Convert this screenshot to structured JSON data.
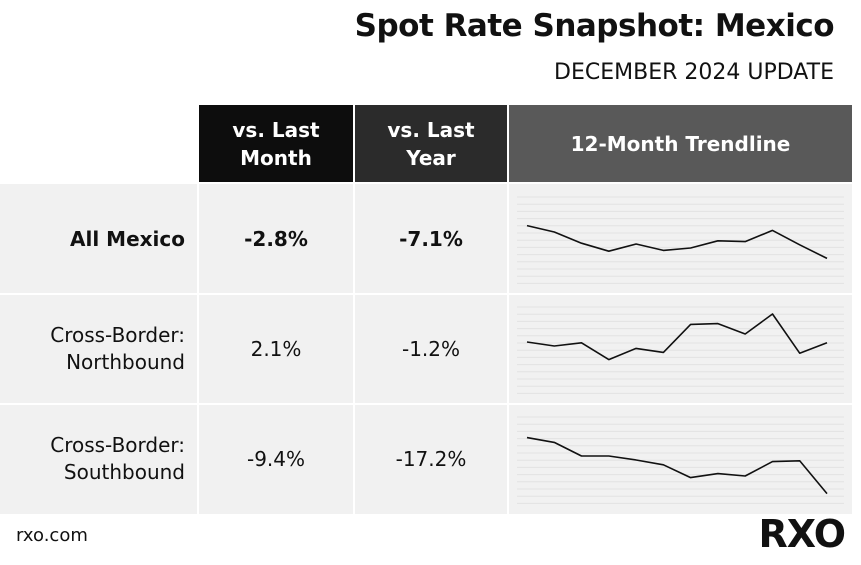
{
  "header": {
    "title": "Spot Rate Snapshot: Mexico",
    "subtitle": "DECEMBER 2024 UPDATE"
  },
  "columns": {
    "vs_last_month": "vs. Last\nMonth",
    "vs_last_year": "vs. Last\nYear",
    "trendline": "12-Month Trendline"
  },
  "rows": [
    {
      "label": "All Mexico",
      "vs_last_month": "-2.8%",
      "vs_last_year": "-7.1%",
      "bold": true
    },
    {
      "label": "Cross-Border:\nNorthbound",
      "vs_last_month": "2.1%",
      "vs_last_year": "-1.2%",
      "bold": false
    },
    {
      "label": "Cross-Border:\nSouthbound",
      "vs_last_month": "-9.4%",
      "vs_last_year": "-17.2%",
      "bold": false
    }
  ],
  "chart_data": {
    "type": "line",
    "x": [
      1,
      2,
      3,
      4,
      5,
      6,
      7,
      8,
      9,
      10,
      11,
      12
    ],
    "ylim": [
      0,
      1
    ],
    "grid": true,
    "series": [
      {
        "values": [
          0.68,
          0.6,
          0.46,
          0.36,
          0.45,
          0.37,
          0.4,
          0.49,
          0.48,
          0.62,
          0.44,
          0.27
        ]
      },
      {
        "values": [
          0.6,
          0.55,
          0.59,
          0.38,
          0.52,
          0.47,
          0.82,
          0.83,
          0.7,
          0.95,
          0.46,
          0.59
        ]
      },
      {
        "values": [
          0.78,
          0.72,
          0.55,
          0.55,
          0.5,
          0.44,
          0.28,
          0.33,
          0.3,
          0.48,
          0.49,
          0.08
        ]
      }
    ]
  },
  "footer": {
    "url": "rxo.com",
    "logo": "RXO"
  },
  "colors": {
    "header_month_bg": "#0d0d0d",
    "header_year_bg": "#2b2b2b",
    "header_trend_bg": "#595959",
    "row_bg": "#f1f1f1",
    "line": "#111111"
  }
}
